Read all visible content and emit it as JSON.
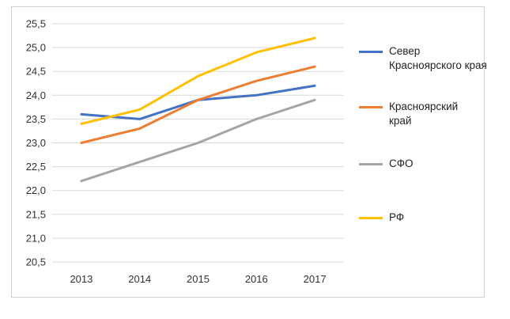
{
  "chart_data": {
    "type": "line",
    "x": [
      "2013",
      "2014",
      "2015",
      "2016",
      "2017"
    ],
    "ylim": [
      20.5,
      25.5
    ],
    "yticks": [
      "20,5",
      "21,0",
      "21,5",
      "22,0",
      "22,5",
      "23,0",
      "23,5",
      "24,0",
      "24,5",
      "25,0",
      "25,5"
    ],
    "grid": true,
    "legend": "right",
    "series": [
      {
        "name": "Север Красноярского края",
        "color": "#4472C4",
        "values": [
          23.6,
          23.5,
          23.9,
          24.0,
          24.2
        ]
      },
      {
        "name": "Красноярский край",
        "color": "#ED7D31",
        "values": [
          23.0,
          23.3,
          23.9,
          24.3,
          24.6
        ]
      },
      {
        "name": "СФО",
        "color": "#A5A5A5",
        "values": [
          22.2,
          22.6,
          23.0,
          23.5,
          23.9
        ]
      },
      {
        "name": "РФ",
        "color": "#FFC000",
        "values": [
          23.4,
          23.7,
          24.4,
          24.9,
          25.2
        ]
      }
    ]
  }
}
